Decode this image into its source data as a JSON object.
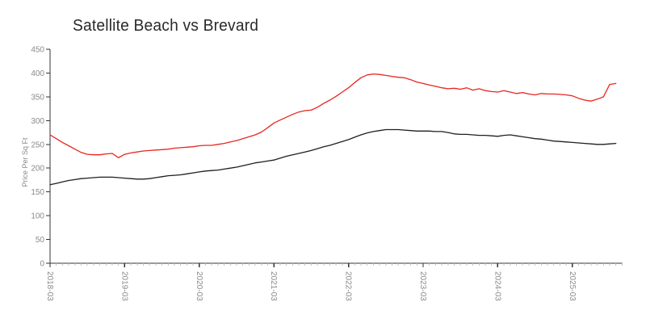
{
  "chart_data": {
    "type": "line",
    "title": "Satellite Beach vs Brevard",
    "ylabel": "Price Per Sq Ft",
    "xlabel": "",
    "frequency": "monthly",
    "x_start": "2018-03",
    "x_end": "2025-10",
    "x_tick_labels": [
      "2018-03",
      "2019-03",
      "2020-03",
      "2021-03",
      "2022-03",
      "2023-03",
      "2024-03",
      "2025-03"
    ],
    "ylim": [
      0,
      450
    ],
    "y_ticks": [
      0,
      50,
      100,
      150,
      200,
      250,
      300,
      350,
      400,
      450
    ],
    "grid": false,
    "legend_position": "none",
    "colors": {
      "axis": "#333333",
      "tick_label": "#8a8a8a",
      "minor_tick": "#c4c4c4",
      "title": "#2a2a2a"
    },
    "series": [
      {
        "name": "Satellite Beach",
        "color": "#e8261f",
        "values": [
          270,
          262,
          254,
          247,
          240,
          233,
          229,
          228,
          228,
          230,
          231,
          222,
          229,
          232,
          234,
          236,
          237,
          238,
          239,
          240,
          242,
          243,
          244,
          245,
          247,
          248,
          248,
          250,
          252,
          255,
          258,
          262,
          266,
          270,
          276,
          285,
          295,
          301,
          307,
          313,
          318,
          321,
          322,
          328,
          336,
          343,
          351,
          360,
          369,
          380,
          390,
          396,
          398,
          397,
          395,
          393,
          391,
          390,
          386,
          381,
          378,
          375,
          372,
          369,
          367,
          368,
          366,
          369,
          364,
          367,
          363,
          361,
          360,
          363,
          360,
          357,
          359,
          356,
          354,
          357,
          356,
          356,
          355,
          354,
          352,
          347,
          343,
          341,
          345,
          350,
          376,
          378
        ]
      },
      {
        "name": "Brevard",
        "color": "#1f1f1f",
        "values": [
          165,
          168,
          171,
          174,
          176,
          178,
          179,
          180,
          181,
          181,
          181,
          180,
          179,
          178,
          177,
          177,
          178,
          180,
          182,
          184,
          185,
          186,
          188,
          190,
          192,
          194,
          195,
          196,
          198,
          200,
          202,
          205,
          208,
          211,
          213,
          215,
          217,
          221,
          225,
          228,
          231,
          234,
          237,
          241,
          245,
          248,
          252,
          256,
          260,
          265,
          270,
          274,
          277,
          279,
          281,
          281,
          281,
          280,
          279,
          278,
          278,
          278,
          277,
          277,
          275,
          272,
          271,
          271,
          270,
          269,
          269,
          268,
          267,
          269,
          270,
          268,
          266,
          264,
          262,
          261,
          259,
          257,
          256,
          255,
          254,
          253,
          252,
          251,
          250,
          250,
          251,
          252
        ]
      }
    ]
  }
}
